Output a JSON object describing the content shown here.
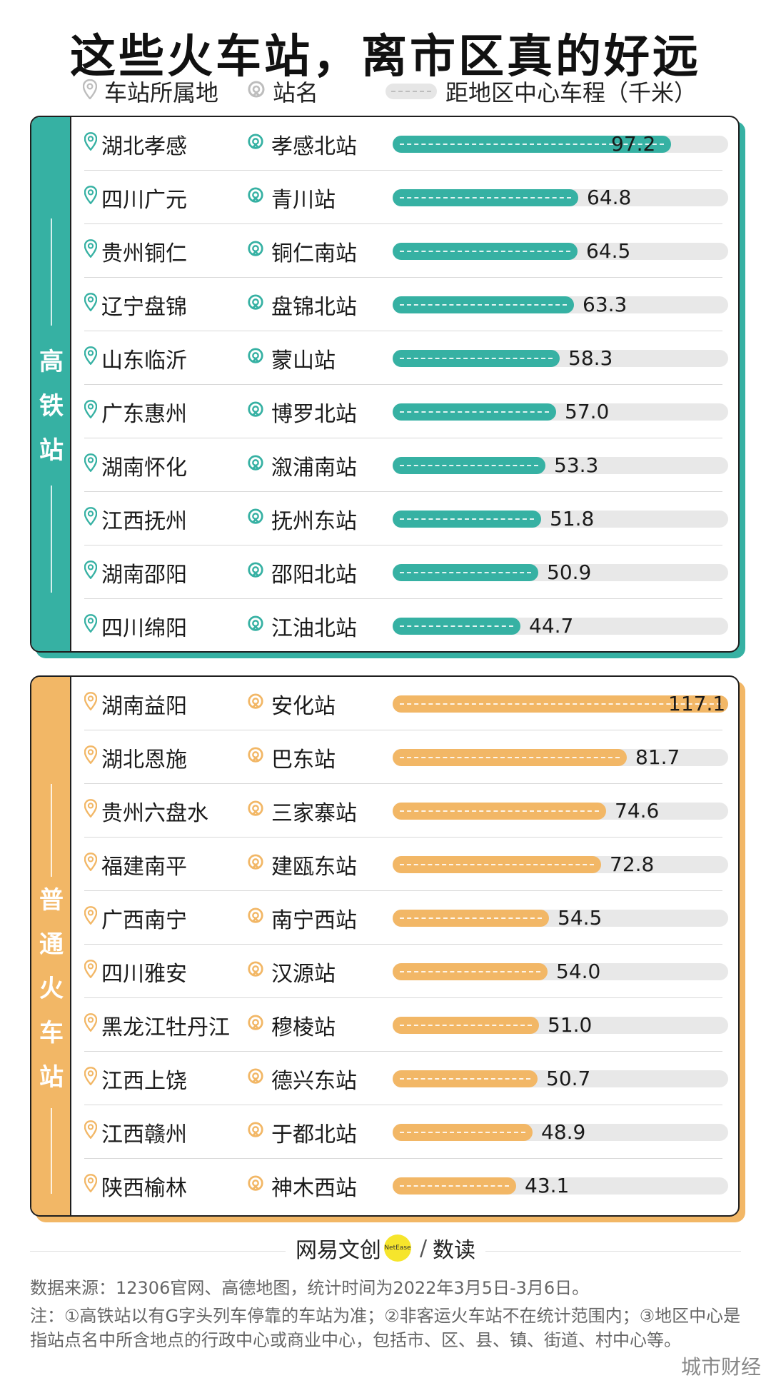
{
  "header": {
    "title": "这些火车站，离市区真的好远",
    "legend_region": "车站所属地",
    "legend_station": "站名",
    "legend_bar": "距地区中心车程（千米）"
  },
  "colors": {
    "hsr": "#36b1a3",
    "regular": "#f2b766",
    "track": "#e8e8e8"
  },
  "icons": {
    "region": "location-pin-icon",
    "station": "train-station-icon"
  },
  "chart_data": {
    "type": "bar",
    "orientation": "horizontal",
    "title": "这些火车站，离市区真的好远",
    "unit": "千米",
    "scale_max": 117.1,
    "groups": [
      {
        "name": "高铁站",
        "rows": [
          {
            "region": "湖北孝感",
            "station": "孝感北站",
            "value": 97.2
          },
          {
            "region": "四川广元",
            "station": "青川站",
            "value": 64.8
          },
          {
            "region": "贵州铜仁",
            "station": "铜仁南站",
            "value": 64.5
          },
          {
            "region": "辽宁盘锦",
            "station": "盘锦北站",
            "value": 63.3
          },
          {
            "region": "山东临沂",
            "station": "蒙山站",
            "value": 58.3
          },
          {
            "region": "广东惠州",
            "station": "博罗北站",
            "value": 57.0
          },
          {
            "region": "湖南怀化",
            "station": "溆浦南站",
            "value": 53.3
          },
          {
            "region": "江西抚州",
            "station": "抚州东站",
            "value": 51.8
          },
          {
            "region": "湖南邵阳",
            "station": "邵阳北站",
            "value": 50.9
          },
          {
            "region": "四川绵阳",
            "station": "江油北站",
            "value": 44.7
          }
        ]
      },
      {
        "name": "普通火车站",
        "rows": [
          {
            "region": "湖南益阳",
            "station": "安化站",
            "value": 117.1
          },
          {
            "region": "湖北恩施",
            "station": "巴东站",
            "value": 81.7
          },
          {
            "region": "贵州六盘水",
            "station": "三家寨站",
            "value": 74.6
          },
          {
            "region": "福建南平",
            "station": "建瓯东站",
            "value": 72.8
          },
          {
            "region": "广西南宁",
            "station": "南宁西站",
            "value": 54.5
          },
          {
            "region": "四川雅安",
            "station": "汉源站",
            "value": 54.0
          },
          {
            "region": "黑龙江牡丹江",
            "station": "穆棱站",
            "value": 51.0
          },
          {
            "region": "江西上饶",
            "station": "德兴东站",
            "value": 50.7
          },
          {
            "region": "江西赣州",
            "station": "于都北站",
            "value": 48.9
          },
          {
            "region": "陕西榆林",
            "station": "神木西站",
            "value": 43.1
          }
        ]
      }
    ]
  },
  "footer": {
    "brand_left": "网易文创",
    "brand_dot": "NetEase",
    "brand_right": "数读",
    "source": "数据来源：12306官网、高德地图，统计时间为2022年3月5日-3月6日。",
    "note": "注：①高铁站以有G字头列车停靠的车站为准；②非客运火车站不在统计范围内；③地区中心是指站点名中所含地点的行政中心或商业中心，包括市、区、县、镇、街道、村中心等。",
    "watermark": "城市财经"
  }
}
